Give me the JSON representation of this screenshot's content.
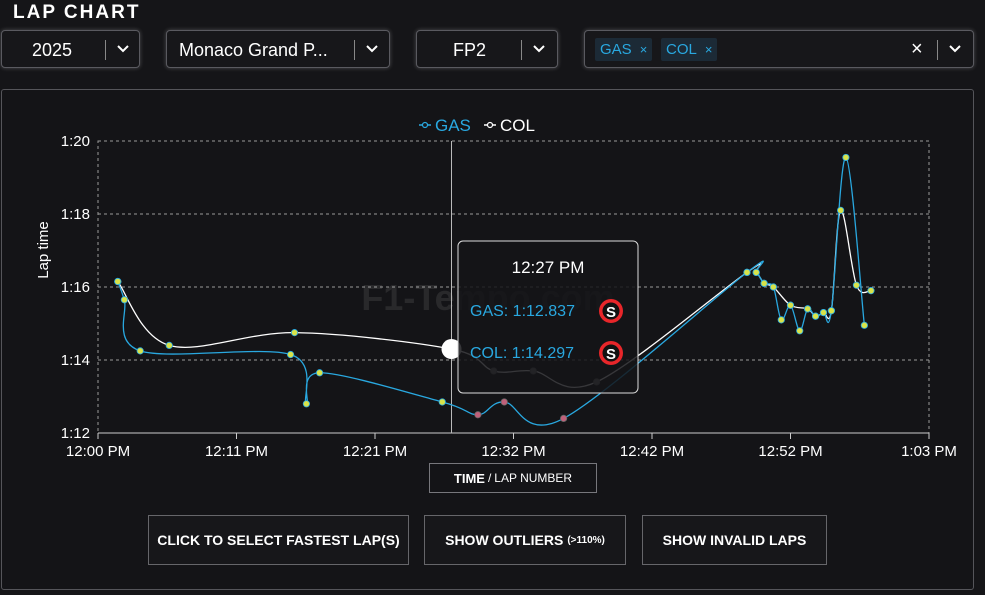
{
  "page_title": "LAP CHART",
  "filters": {
    "year": "2025",
    "event": "Monaco Grand P...",
    "session": "FP2",
    "drivers": [
      {
        "code": "GAS",
        "color": "#29a8e0"
      },
      {
        "code": "COL",
        "color": "#29a8e0"
      }
    ],
    "clear_icon": "×",
    "chip_remove_icon": "×"
  },
  "watermark": "F1-Tempo.com",
  "buttons": {
    "fastest": "CLICK TO SELECT FASTEST LAP(S)",
    "outliers": "SHOW OUTLIERS",
    "outliers_note": "(>110%)",
    "invalid": "SHOW INVALID LAPS"
  },
  "axis_toggle": {
    "active": "TIME",
    "separator": "/",
    "inactive": "LAP NUMBER"
  },
  "tooltip": {
    "time": "12:27 PM",
    "rows": [
      {
        "label": "GAS: 1:12.837",
        "color": "#29a8e0",
        "tyre": "S"
      },
      {
        "label": "COL: 1:14.297",
        "color": "#29a8e0",
        "tyre": "S"
      }
    ]
  },
  "chart_data": {
    "type": "line",
    "title": "",
    "xlabel": "",
    "ylabel": "Lap time",
    "x_unit": "minutes after 12:00 PM",
    "xlim": [
      0,
      63
    ],
    "ylim": [
      72,
      80
    ],
    "x_ticks": [
      {
        "value": 0,
        "label": "12:00 PM"
      },
      {
        "value": 10.5,
        "label": "12:11 PM"
      },
      {
        "value": 21,
        "label": "12:21 PM"
      },
      {
        "value": 31.5,
        "label": "12:32 PM"
      },
      {
        "value": 42,
        "label": "12:42 PM"
      },
      {
        "value": 52.5,
        "label": "12:52 PM"
      },
      {
        "value": 63,
        "label": "1:03 PM"
      }
    ],
    "y_ticks": [
      {
        "value": 72,
        "label": "1:12"
      },
      {
        "value": 74,
        "label": "1:14"
      },
      {
        "value": 76,
        "label": "1:16"
      },
      {
        "value": 78,
        "label": "1:18"
      },
      {
        "value": 80,
        "label": "1:20"
      }
    ],
    "legend": "top-center",
    "grid": true,
    "hover_x": 26.8,
    "series": [
      {
        "name": "GAS",
        "color": "#29a8e0",
        "points": [
          [
            1.5,
            76.15
          ],
          [
            2.0,
            75.65
          ],
          [
            3.2,
            74.25
          ],
          [
            14.6,
            74.15
          ],
          [
            15.8,
            72.8
          ],
          [
            16.8,
            73.65
          ],
          [
            26.1,
            72.85
          ],
          [
            28.8,
            72.5
          ],
          [
            30.8,
            72.85
          ],
          [
            35.3,
            72.4
          ],
          [
            49.2,
            76.4
          ],
          [
            49.9,
            76.4
          ],
          [
            50.5,
            76.1
          ],
          [
            51.2,
            76.0
          ],
          [
            51.8,
            75.1
          ],
          [
            52.5,
            75.5
          ],
          [
            53.2,
            74.8
          ],
          [
            53.8,
            75.4
          ],
          [
            54.4,
            75.2
          ],
          [
            55.0,
            75.3
          ],
          [
            55.6,
            75.35
          ],
          [
            56.7,
            79.55
          ],
          [
            58.1,
            74.95
          ]
        ]
      },
      {
        "name": "COL",
        "color": "#ffffff",
        "points": [
          [
            1.5,
            76.15
          ],
          [
            5.4,
            74.4
          ],
          [
            14.9,
            74.75
          ],
          [
            26.8,
            74.3
          ],
          [
            30.0,
            73.7
          ],
          [
            33.0,
            73.7
          ],
          [
            37.8,
            73.4
          ],
          [
            49.2,
            76.4
          ],
          [
            49.9,
            76.4
          ],
          [
            50.5,
            76.1
          ],
          [
            51.2,
            76.0
          ],
          [
            52.5,
            75.5
          ],
          [
            53.8,
            75.4
          ],
          [
            54.4,
            75.2
          ],
          [
            55.0,
            75.3
          ],
          [
            55.6,
            75.35
          ],
          [
            56.3,
            78.1
          ],
          [
            57.5,
            76.05
          ],
          [
            58.6,
            75.9
          ]
        ]
      }
    ]
  }
}
